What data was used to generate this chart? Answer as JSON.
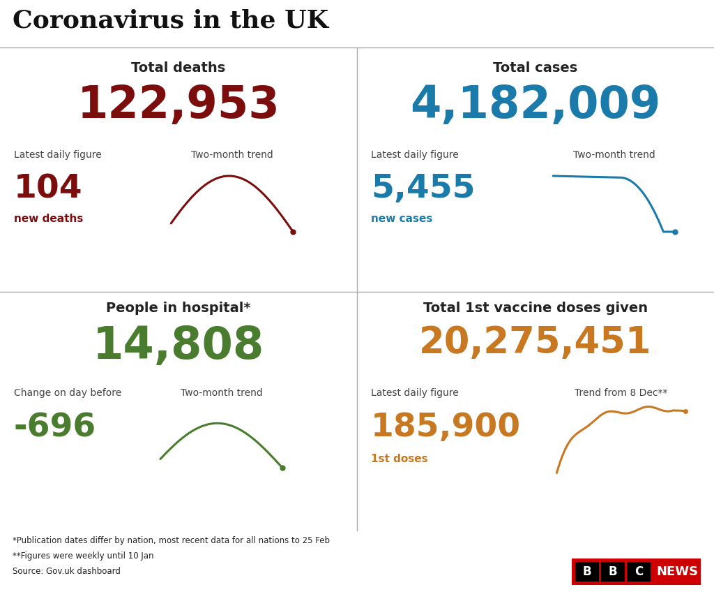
{
  "title": "Coronavirus in the UK",
  "title_fontsize": 26,
  "background_color": "#ffffff",
  "quadrants": [
    {
      "id": "top_left",
      "heading": "Total deaths",
      "big_number": "122,953",
      "big_number_color": "#7b0d0d",
      "label1": "Latest daily figure",
      "label2": "Two-month trend",
      "small_number": "104",
      "small_number_label": "new deaths",
      "small_number_color": "#7b0d0d",
      "trend_color": "#7b0d0d",
      "trend_shape": "rise_then_fall"
    },
    {
      "id": "top_right",
      "heading": "Total cases",
      "big_number": "4,182,009",
      "big_number_color": "#1a7aaa",
      "label1": "Latest daily figure",
      "label2": "Two-month trend",
      "small_number": "5,455",
      "small_number_label": "new cases",
      "small_number_color": "#1a7aaa",
      "trend_color": "#1a7aaa",
      "trend_shape": "plateau_then_fall"
    },
    {
      "id": "bottom_left",
      "heading": "People in hospital*",
      "big_number": "14,808",
      "big_number_color": "#4a7c2f",
      "label1": "Change on day before",
      "label2": "Two-month trend",
      "small_number": "-696",
      "small_number_label": "",
      "small_number_color": "#4a7c2f",
      "trend_color": "#4a7c2f",
      "trend_shape": "rise_then_fall_gentle"
    },
    {
      "id": "bottom_right",
      "heading": "Total 1st vaccine doses given",
      "big_number": "20,275,451",
      "big_number_color": "#c87820",
      "label1": "Latest daily figure",
      "label2": "Trend from 8 Dec**",
      "small_number": "185,900",
      "small_number_label": "1st doses",
      "small_number_color": "#c87820",
      "trend_color": "#c87820",
      "trend_shape": "rise_then_plateau_slight_drop"
    }
  ],
  "footnotes": [
    "*Publication dates differ by nation, most recent data for all nations to 25 Feb",
    "**Figures were weekly until 10 Jan",
    "Source: Gov.uk dashboard"
  ],
  "heading_color": "#222222",
  "label_color": "#444444",
  "footnote_color": "#222222"
}
